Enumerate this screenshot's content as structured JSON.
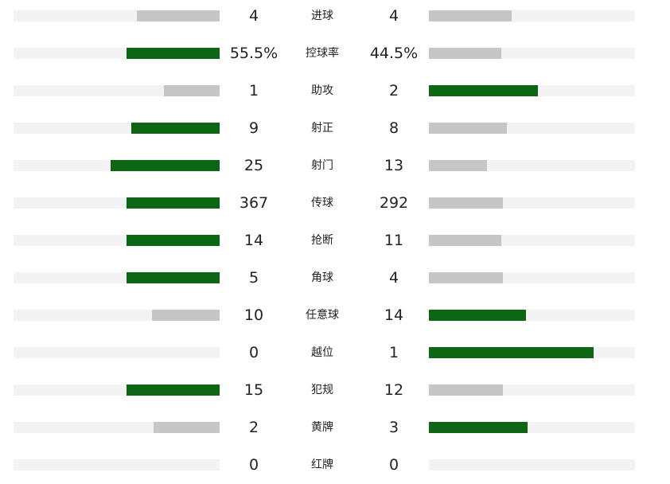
{
  "colors": {
    "leader": "#0c6614",
    "trailer": "#c6c6c6",
    "track": "#f3f3f3"
  },
  "stats": [
    {
      "label": "进球",
      "home": "4",
      "away": "4",
      "home_ratio": 0.4,
      "away_ratio": 0.4,
      "leader": "none"
    },
    {
      "label": "控球率",
      "home": "55.5%",
      "away": "44.5%",
      "home_ratio": 0.45,
      "away_ratio": 0.35,
      "leader": "home"
    },
    {
      "label": "助攻",
      "home": "1",
      "away": "2",
      "home_ratio": 0.27,
      "away_ratio": 0.53,
      "leader": "away"
    },
    {
      "label": "射正",
      "home": "9",
      "away": "8",
      "home_ratio": 0.43,
      "away_ratio": 0.38,
      "leader": "home"
    },
    {
      "label": "射门",
      "home": "25",
      "away": "13",
      "home_ratio": 0.53,
      "away_ratio": 0.28,
      "leader": "home"
    },
    {
      "label": "传球",
      "home": "367",
      "away": "292",
      "home_ratio": 0.45,
      "away_ratio": 0.36,
      "leader": "home"
    },
    {
      "label": "抢断",
      "home": "14",
      "away": "11",
      "home_ratio": 0.45,
      "away_ratio": 0.35,
      "leader": "home"
    },
    {
      "label": "角球",
      "home": "5",
      "away": "4",
      "home_ratio": 0.45,
      "away_ratio": 0.36,
      "leader": "home"
    },
    {
      "label": "任意球",
      "home": "10",
      "away": "14",
      "home_ratio": 0.33,
      "away_ratio": 0.47,
      "leader": "away"
    },
    {
      "label": "越位",
      "home": "0",
      "away": "1",
      "home_ratio": 0.0,
      "away_ratio": 0.8,
      "leader": "away"
    },
    {
      "label": "犯规",
      "home": "15",
      "away": "12",
      "home_ratio": 0.45,
      "away_ratio": 0.36,
      "leader": "home"
    },
    {
      "label": "黄牌",
      "home": "2",
      "away": "3",
      "home_ratio": 0.32,
      "away_ratio": 0.48,
      "leader": "away"
    },
    {
      "label": "红牌",
      "home": "0",
      "away": "0",
      "home_ratio": 0.0,
      "away_ratio": 0.0,
      "leader": "none"
    }
  ]
}
